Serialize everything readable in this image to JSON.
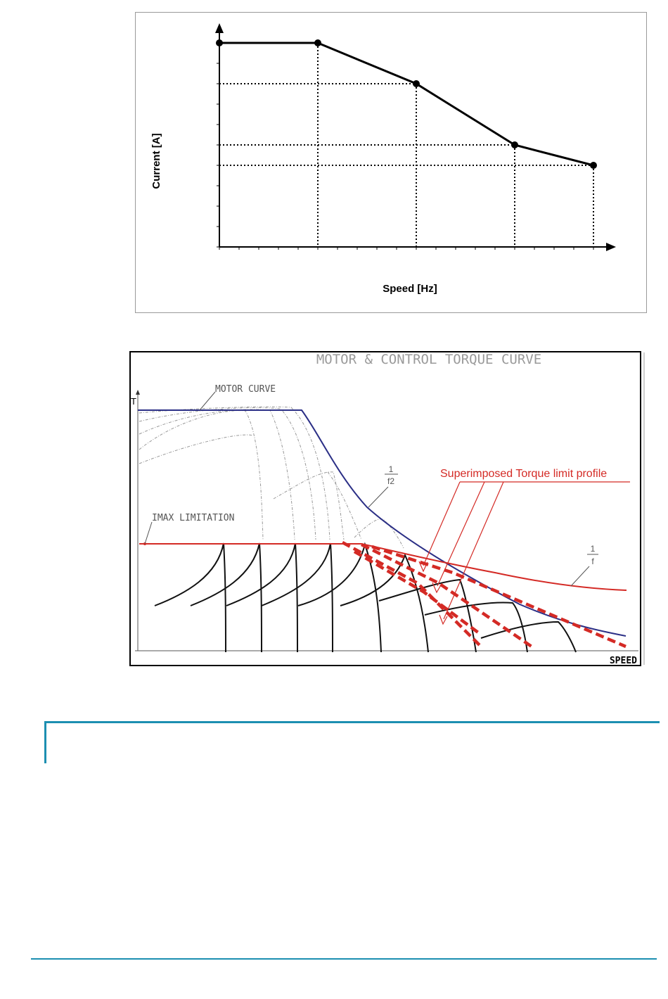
{
  "charts": [
    {
      "type": "line",
      "xlabel": "Speed [Hz]",
      "ylabel": "Current [A]",
      "xlim": [
        0,
        19
      ],
      "ylim": [
        0,
        10
      ],
      "points": [
        [
          0,
          10
        ],
        [
          5,
          10
        ],
        [
          10,
          8
        ],
        [
          15,
          5
        ],
        [
          19,
          4
        ]
      ]
    },
    {
      "type": "line",
      "title": "MOTOR & CONTROL TORQUE CURVE",
      "xlabel": "SPEED",
      "ylabel": "T",
      "annotations": [
        "MOTOR CURVE",
        "IMAX LIMITATION",
        "1",
        "f2",
        "1",
        "f",
        "Superimposed Torque limit profile"
      ]
    }
  ],
  "colors": {
    "accent": "#1c8fb1",
    "motor_curve": "#2b2f86",
    "limit": "#d42a25"
  }
}
